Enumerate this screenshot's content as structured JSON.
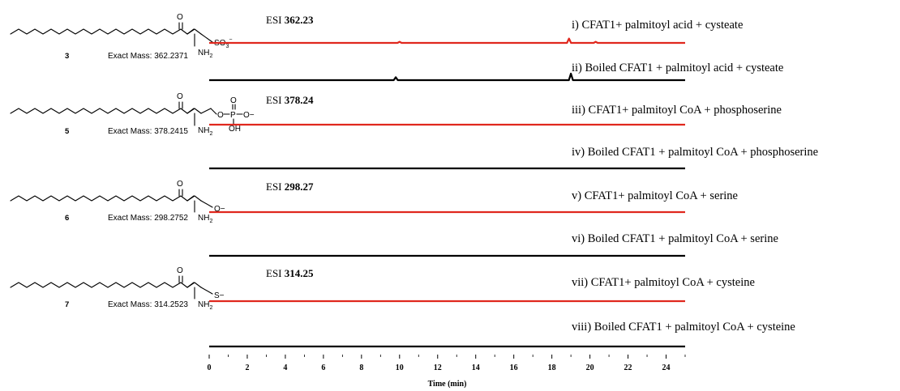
{
  "chart_data": {
    "type": "line",
    "xlabel": "Time (min)",
    "xlim": [
      0,
      25
    ],
    "x_ticks": [
      0,
      2,
      4,
      6,
      8,
      10,
      12,
      14,
      16,
      18,
      20,
      22,
      24
    ],
    "grid": false,
    "series": [
      {
        "name": "i) CFAT1+ palmitoyl acid + cysteate",
        "color": "#e0281e",
        "esi": "362.23",
        "peaks": [
          {
            "x": 10.0,
            "y": 0.03
          },
          {
            "x": 18.9,
            "y": 0.12
          },
          {
            "x": 20.3,
            "y": 0.03
          }
        ]
      },
      {
        "name": "ii) Boiled CFAT1 + palmitoyl acid + cysteate",
        "color": "#000000",
        "peaks": [
          {
            "x": 9.8,
            "y": 0.08
          },
          {
            "x": 19.0,
            "y": 0.18
          }
        ]
      },
      {
        "name": "iii) CFAT1+ palmitoyl CoA + phosphoserine",
        "color": "#e0281e",
        "esi": "378.24",
        "peaks": []
      },
      {
        "name": "iv) Boiled CFAT1 + palmitoyl CoA + phosphoserine",
        "color": "#000000",
        "peaks": []
      },
      {
        "name": "v) CFAT1+ palmitoyl CoA + serine",
        "color": "#e0281e",
        "esi": "298.27",
        "peaks": []
      },
      {
        "name": "vi) Boiled CFAT1 + palmitoyl CoA + serine",
        "color": "#000000",
        "peaks": []
      },
      {
        "name": "vii) CFAT1+ palmitoyl CoA + cysteine",
        "color": "#e0281e",
        "esi": "314.25",
        "peaks": []
      },
      {
        "name": "viii) Boiled CFAT1 + palmitoyl CoA + cysteine",
        "color": "#000000",
        "peaks": []
      }
    ]
  },
  "esi_prefix": "ESI",
  "compounds": [
    {
      "number": "3",
      "exact_mass": "Exact Mass: 362.2371",
      "head_group": "SO3−",
      "amine": "NH2",
      "carbonyl": "O"
    },
    {
      "number": "5",
      "exact_mass": "Exact Mass: 378.2415",
      "head_group": "phosphate",
      "amine": "NH2",
      "carbonyl": "O",
      "labels": {
        "o_link": "O",
        "p": "P",
        "o_top": "O",
        "o_minus": "O−",
        "oh": "OH"
      }
    },
    {
      "number": "6",
      "exact_mass": "Exact Mass: 298.2752",
      "head_group": "O−",
      "amine": "NH2",
      "carbonyl": "O"
    },
    {
      "number": "7",
      "exact_mass": "Exact Mass: 314.2523",
      "head_group": "S−",
      "amine": "NH2",
      "carbonyl": "O"
    }
  ]
}
